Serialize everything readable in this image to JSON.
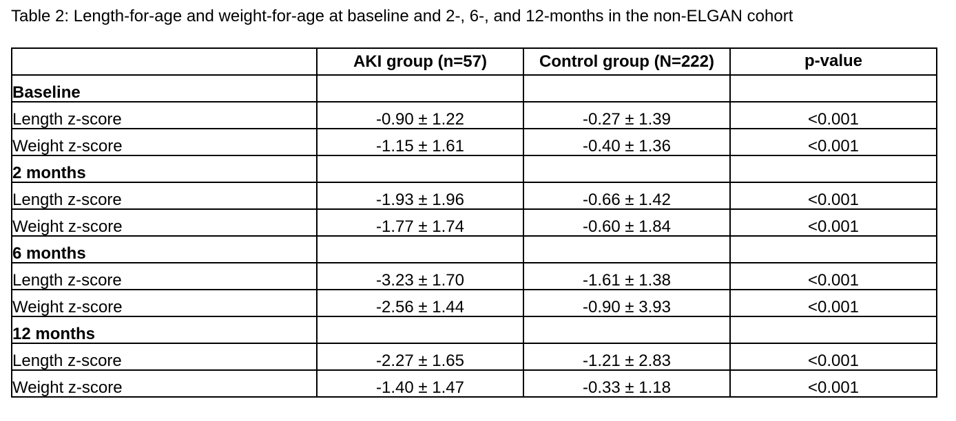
{
  "caption": "Table 2: Length-for-age and weight-for-age at baseline and 2-, 6-, and 12-months in the non-ELGAN cohort",
  "table": {
    "headers": [
      "",
      "AKI group (n=57)",
      "Control group (N=222)",
      "p-value"
    ],
    "rows": [
      {
        "label": "Baseline",
        "section": true,
        "aki": "",
        "control": "",
        "p": ""
      },
      {
        "label": "Length z-score",
        "section": false,
        "aki": "-0.90 ± 1.22",
        "control": "-0.27 ± 1.39",
        "p": "<0.001"
      },
      {
        "label": "Weight z-score",
        "section": false,
        "aki": "-1.15 ± 1.61",
        "control": "-0.40 ± 1.36",
        "p": "<0.001"
      },
      {
        "label": "2 months",
        "section": true,
        "aki": "",
        "control": "",
        "p": ""
      },
      {
        "label": "Length z-score",
        "section": false,
        "aki": "-1.93 ± 1.96",
        "control": "-0.66 ± 1.42",
        "p": "<0.001"
      },
      {
        "label": "Weight z-score",
        "section": false,
        "aki": "-1.77 ± 1.74",
        "control": "-0.60 ± 1.84",
        "p": "<0.001"
      },
      {
        "label": "6 months",
        "section": true,
        "aki": "",
        "control": "",
        "p": ""
      },
      {
        "label": "Length z-score",
        "section": false,
        "aki": "-3.23 ± 1.70",
        "control": "-1.61 ± 1.38",
        "p": "<0.001"
      },
      {
        "label": "Weight z-score",
        "section": false,
        "aki": "-2.56 ± 1.44",
        "control": "-0.90 ± 3.93",
        "p": "<0.001"
      },
      {
        "label": "12 months",
        "section": true,
        "aki": "",
        "control": "",
        "p": ""
      },
      {
        "label": "Length z-score",
        "section": false,
        "aki": "-2.27 ± 1.65",
        "control": "-1.21 ± 2.83",
        "p": "<0.001"
      },
      {
        "label": "Weight z-score",
        "section": false,
        "aki": "-1.40 ± 1.47",
        "control": "-0.33 ± 1.18",
        "p": "<0.001"
      }
    ]
  }
}
